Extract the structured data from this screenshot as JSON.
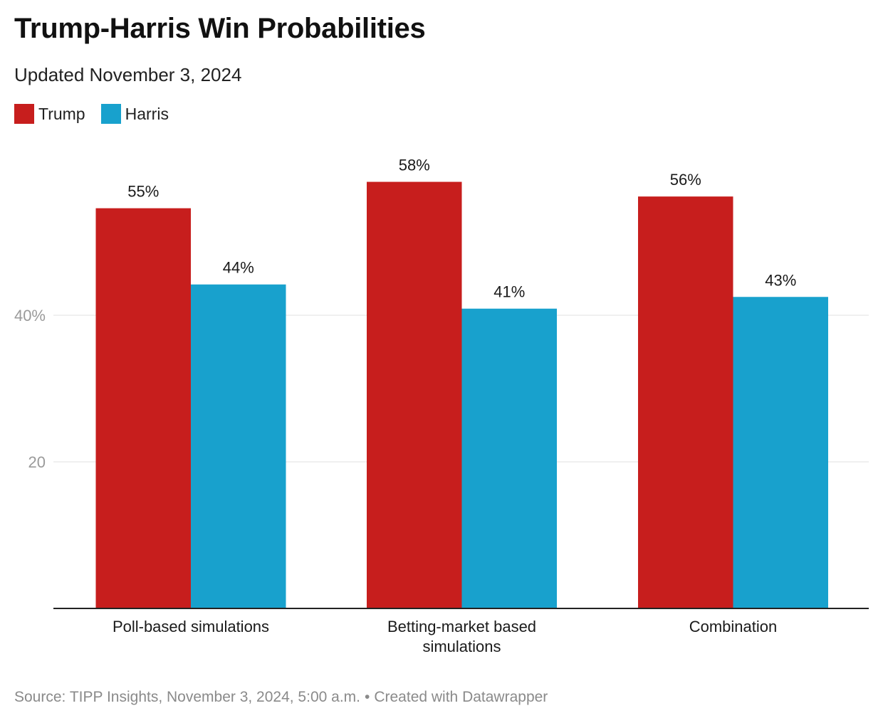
{
  "header": {
    "title": "Trump-Harris Win Probabilities",
    "subtitle": "Updated November 3, 2024"
  },
  "legend": [
    {
      "label": "Trump",
      "color": "#c71e1d"
    },
    {
      "label": "Harris",
      "color": "#18a1cd"
    }
  ],
  "chart_data": {
    "type": "bar",
    "title": "Trump-Harris Win Probabilities",
    "subtitle": "Updated November 3, 2024",
    "categories": [
      [
        "Poll-based simulations"
      ],
      [
        "Betting-market based",
        "simulations"
      ],
      [
        "Combination"
      ]
    ],
    "series": [
      {
        "name": "Trump",
        "color": "#c71e1d",
        "values": [
          54.6,
          58.2,
          56.2
        ],
        "labels": [
          "55%",
          "58%",
          "56%"
        ]
      },
      {
        "name": "Harris",
        "color": "#18a1cd",
        "values": [
          44.2,
          40.9,
          42.5
        ],
        "labels": [
          "44%",
          "41%",
          "43%"
        ]
      }
    ],
    "yticks": [
      {
        "value": 20,
        "label": "20"
      },
      {
        "value": 40,
        "label": "40%"
      }
    ],
    "ylim": [
      0,
      60
    ],
    "xlabel": "",
    "ylabel": "",
    "grid": true,
    "legend_position": "top-left"
  },
  "footer": {
    "source": "Source: TIPP Insights, November 3, 2024, 5:00 a.m.",
    "separator": "•",
    "credit": "Created with Datawrapper"
  }
}
